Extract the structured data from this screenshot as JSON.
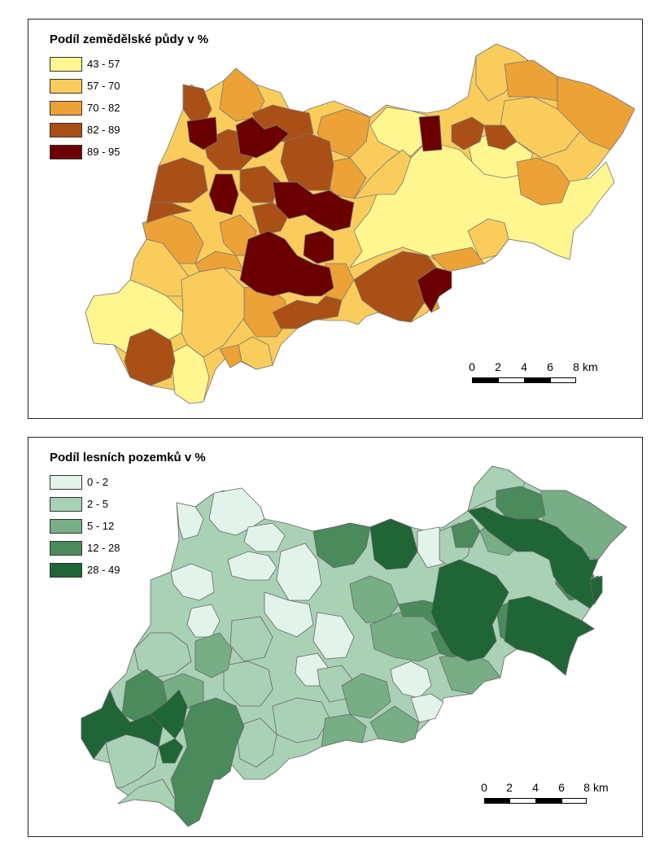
{
  "maps": {
    "agri": {
      "legend_title": "Podíl zemědělské půdy v %",
      "classes": [
        {
          "label": "43 - 57",
          "color": "#FFF68F"
        },
        {
          "label": "57 - 70",
          "color": "#F9CC5C"
        },
        {
          "label": "70 - 82",
          "color": "#ECA236"
        },
        {
          "label": "82 - 89",
          "color": "#AA5016"
        },
        {
          "label": "89 - 95",
          "color": "#6B0000"
        }
      ]
    },
    "forest": {
      "legend_title": "Podíl lesních pozemků v %",
      "classes": [
        {
          "label": "0 - 2",
          "color": "#E2F4EA"
        },
        {
          "label": "2 - 5",
          "color": "#A9D1B5"
        },
        {
          "label": "5 - 12",
          "color": "#78AE86"
        },
        {
          "label": "12 - 28",
          "color": "#4A8A5B"
        },
        {
          "label": "28 - 49",
          "color": "#1F6535"
        }
      ]
    }
  },
  "scale": {
    "ticks": [
      "0",
      "2",
      "4",
      "6",
      "8"
    ],
    "unit": "km"
  }
}
